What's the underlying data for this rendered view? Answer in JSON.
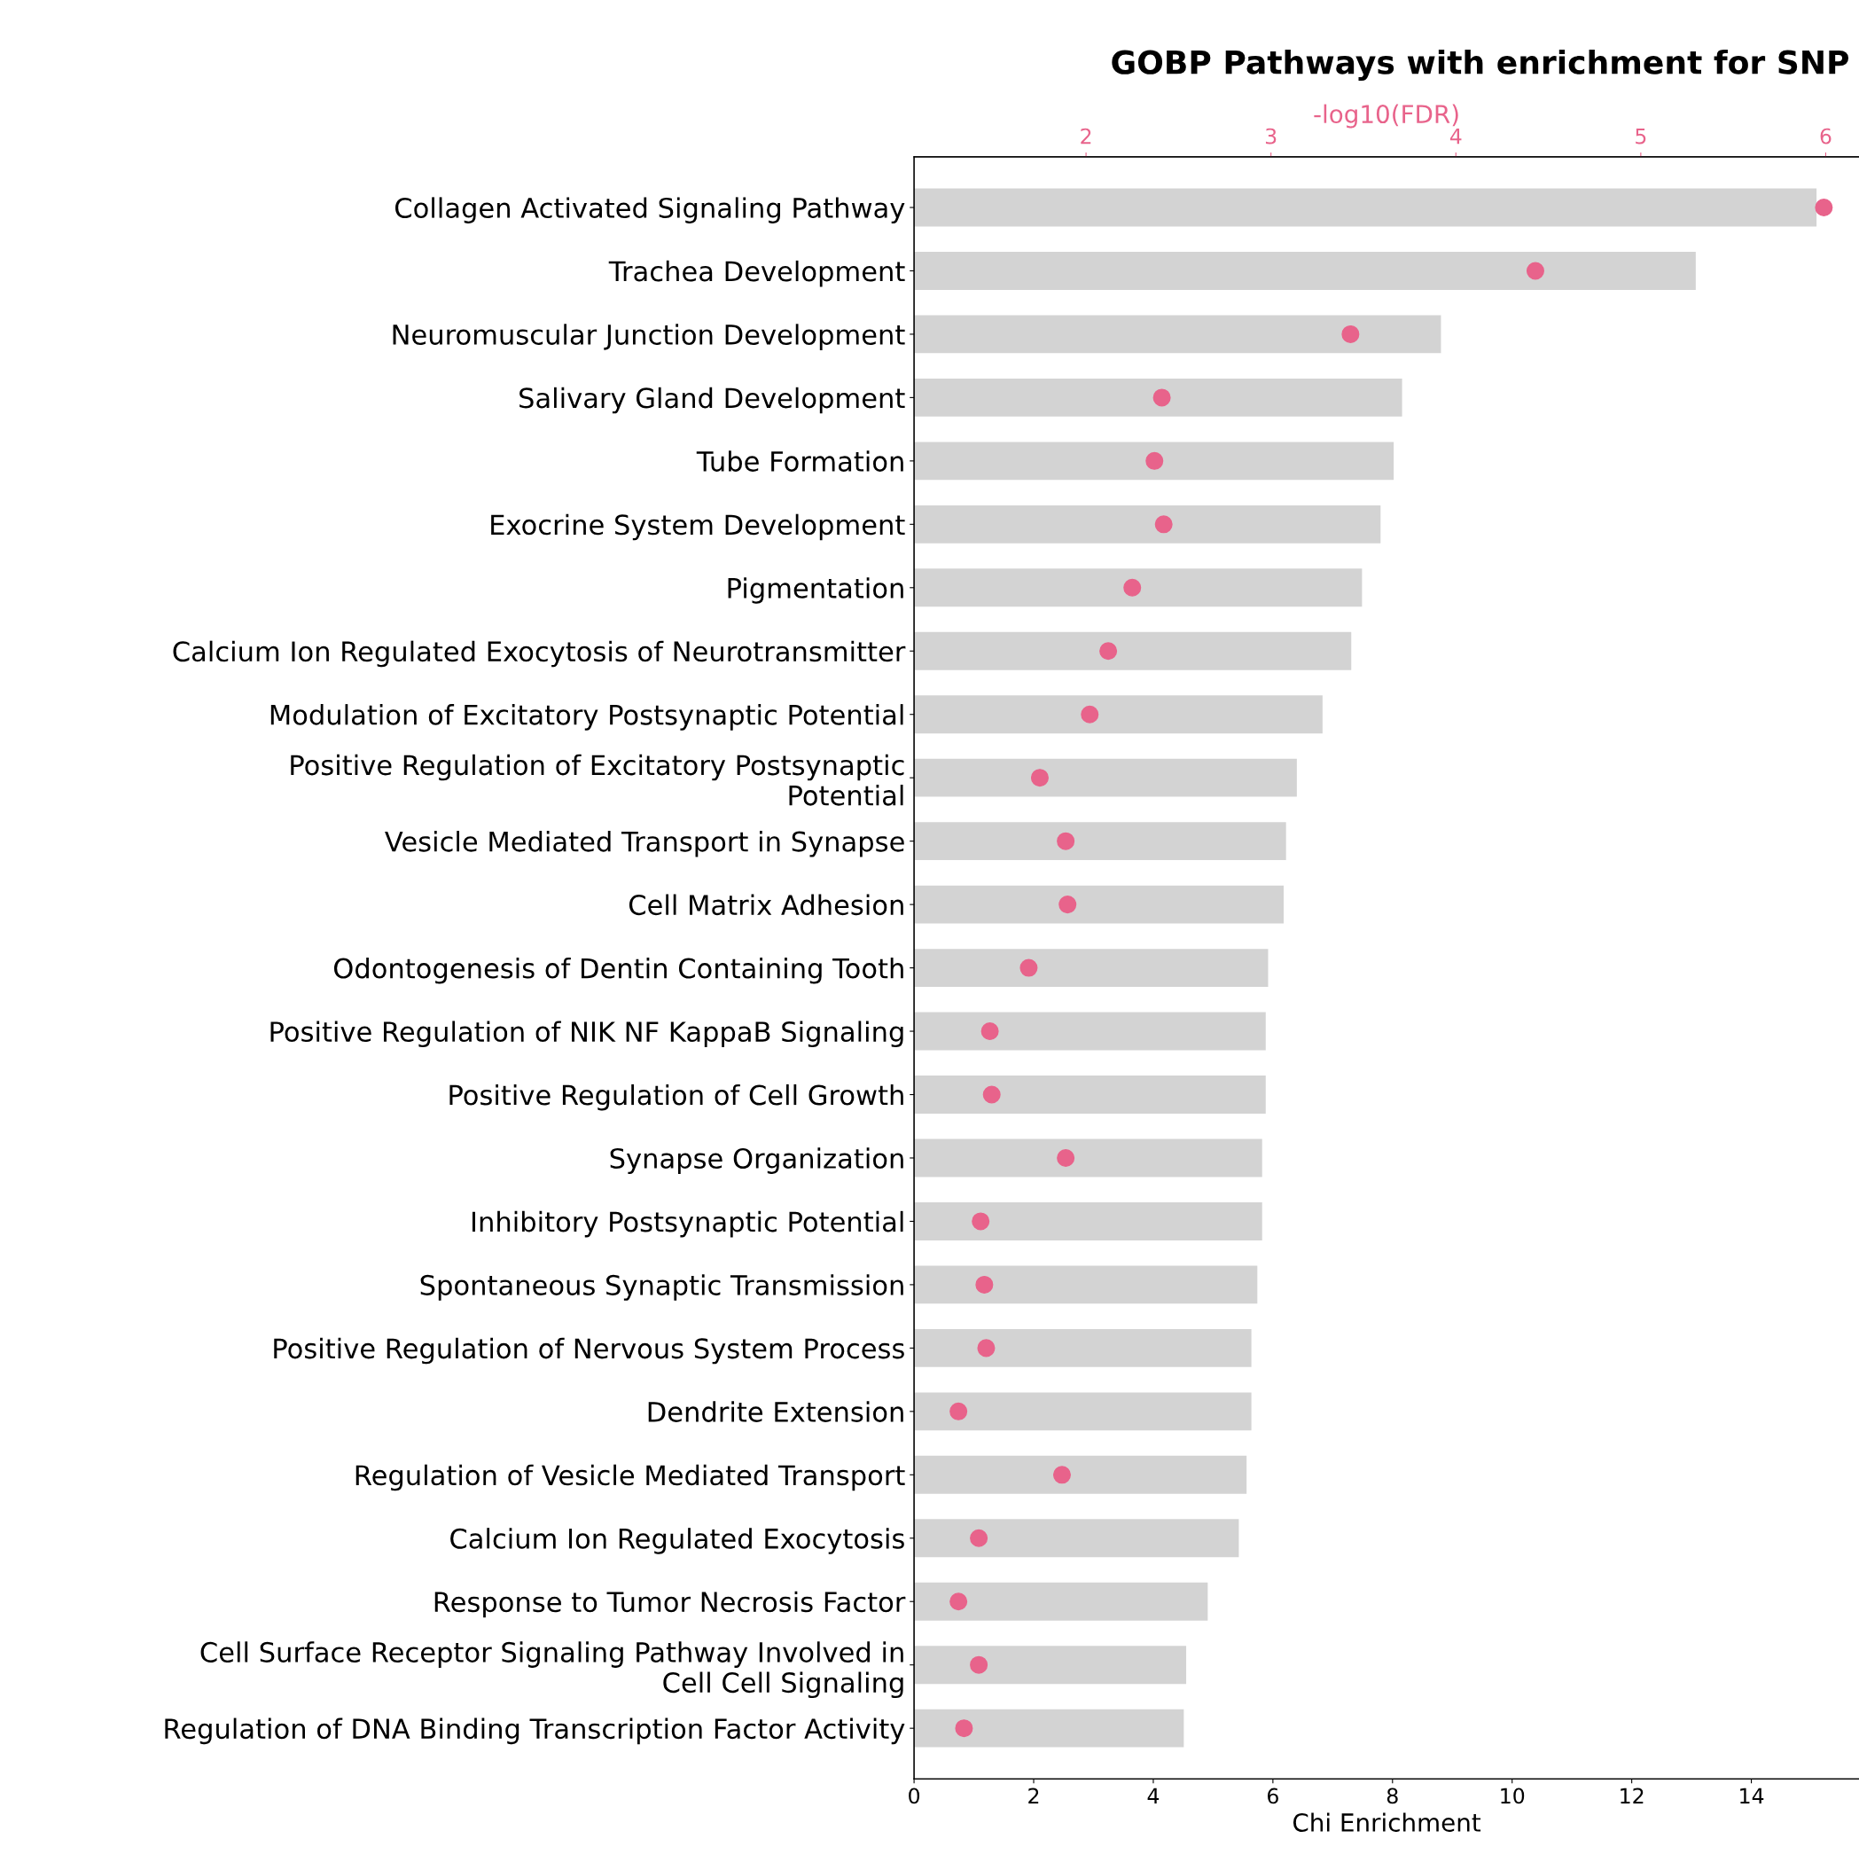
{
  "chart_data": {
    "type": "bar",
    "orientation": "horizontal",
    "title": "GOBP Pathways with enrichment for SNP",
    "xlabel": "Chi Enrichment",
    "x2label": "-log10(FDR)",
    "categories": [
      "Collagen Activated Signaling Pathway",
      "Trachea Development",
      "Neuromuscular Junction Development",
      "Salivary Gland Development",
      "Tube Formation",
      "Exocrine System Development",
      "Pigmentation",
      "Calcium Ion Regulated Exocytosis of Neurotransmitter",
      "Modulation of Excitatory Postsynaptic Potential",
      "Positive Regulation of Excitatory Postsynaptic\nPotential",
      "Vesicle Mediated Transport in Synapse",
      "Cell Matrix Adhesion",
      "Odontogenesis of Dentin Containing Tooth",
      "Positive Regulation of NIK NF KappaB Signaling",
      "Positive Regulation of Cell Growth",
      "Synapse Organization",
      "Inhibitory Postsynaptic Potential",
      "Spontaneous Synaptic Transmission",
      "Positive Regulation of Nervous System Process",
      "Dendrite Extension",
      "Regulation of Vesicle Mediated Transport",
      "Calcium Ion Regulated Exocytosis",
      "Response to Tumor Necrosis Factor",
      "Cell Surface Receptor Signaling Pathway Involved in\nCell Cell Signaling",
      "Regulation of DNA Binding Transcription Factor Activity"
    ],
    "series": [
      {
        "color": "#d3d3d3",
        "values": [
          15.09,
          13.07,
          8.81,
          8.16,
          8.02,
          7.8,
          7.49,
          7.31,
          6.83,
          6.4,
          6.22,
          6.18,
          5.92,
          5.88,
          5.88,
          5.82,
          5.82,
          5.74,
          5.64,
          5.64,
          5.56,
          5.43,
          4.91,
          4.55,
          4.51
        ]
      },
      {
        "type": "scatter",
        "axis": "x2",
        "color": "#e8638b",
        "values": [
          5.99,
          4.43,
          3.43,
          2.41,
          2.37,
          2.42,
          2.25,
          2.12,
          2.02,
          1.75,
          1.89,
          1.9,
          1.69,
          1.48,
          1.49,
          1.89,
          1.43,
          1.45,
          1.46,
          1.31,
          1.87,
          1.42,
          1.31,
          1.42,
          1.34
        ]
      }
    ],
    "xlim": [
      0,
      15.8
    ],
    "xticks": [
      0,
      2,
      4,
      6,
      8,
      10,
      12,
      14
    ],
    "x2lim": [
      1.07,
      6.18
    ],
    "x2ticks": [
      2,
      3,
      4,
      5,
      6
    ],
    "marker": "circle",
    "grid": false,
    "legend": false
  }
}
